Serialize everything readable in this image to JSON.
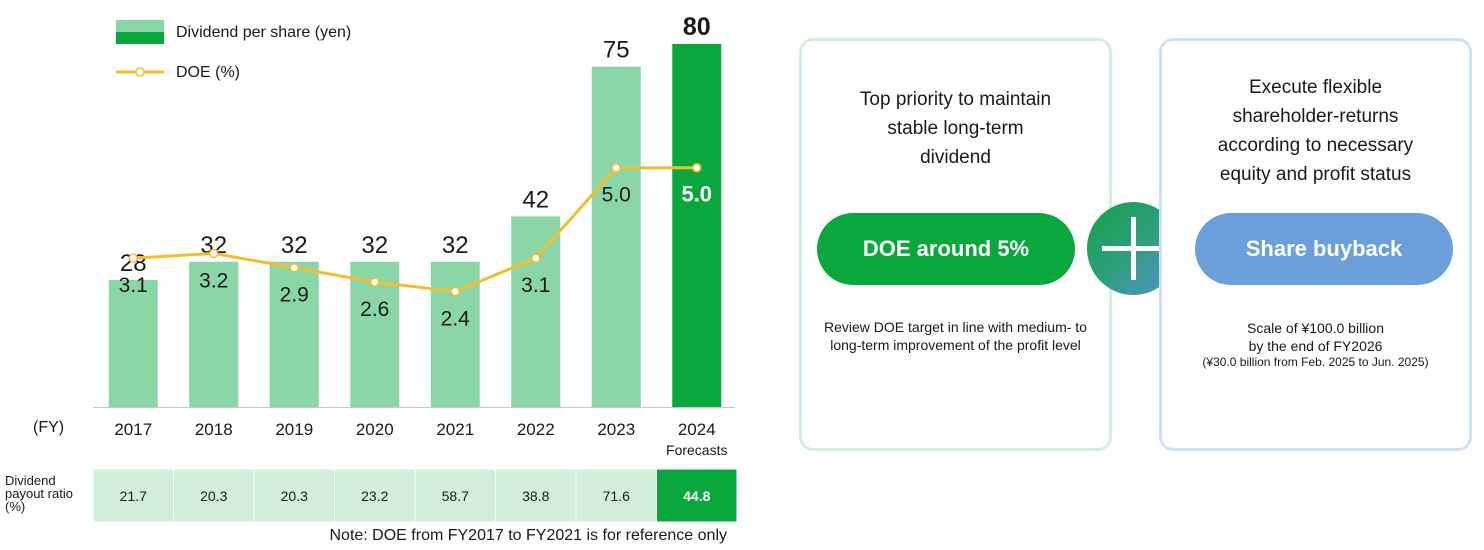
{
  "chart_data": {
    "type": "bar",
    "categories": [
      "2017",
      "2018",
      "2019",
      "2020",
      "2021",
      "2022",
      "2023",
      "2024"
    ],
    "forecast_label": "Forecasts",
    "axis_unit_label": "(FY)",
    "ylim": [
      0,
      80
    ],
    "series": [
      {
        "name": "Dividend per share (yen)",
        "type": "bar",
        "values": [
          28,
          32,
          32,
          32,
          32,
          42,
          75,
          80
        ],
        "color": "#8ad6a6",
        "highlight_color": "#0aa83c"
      },
      {
        "name": "DOE (%)",
        "type": "line",
        "values": [
          3.1,
          3.2,
          2.9,
          2.6,
          2.4,
          3.1,
          5.0,
          5.0
        ],
        "color": "#f5bd2e"
      }
    ],
    "table": {
      "row_label": "Dividend payout ratio (%)",
      "values": [
        "21.7",
        "20.3",
        "20.3",
        "23.2",
        "58.7",
        "38.8",
        "71.6",
        "44.8"
      ],
      "color": "#d4efd9",
      "highlight_color": "#0aa83c"
    },
    "note": "Note: DOE from FY2017 to FY2021 is for reference only"
  },
  "cards": {
    "doe": {
      "heading": "Top priority to maintain stable long-term dividend",
      "pill": "DOE around 5%",
      "note": "Review DOE target in line with medium- to long-term improvement of the profit level"
    },
    "buyback": {
      "heading": "Execute flexible shareholder-returns according to necessary equity and profit status",
      "pill": "Share buyback",
      "note_line1": "Scale of ¥100.0 billion",
      "note_line2": "by the end of FY2026",
      "note_line3": "(¥30.0 billion from Feb. 2025 to Jun. 2025)"
    }
  },
  "icons": {
    "plus": "plus-icon"
  }
}
